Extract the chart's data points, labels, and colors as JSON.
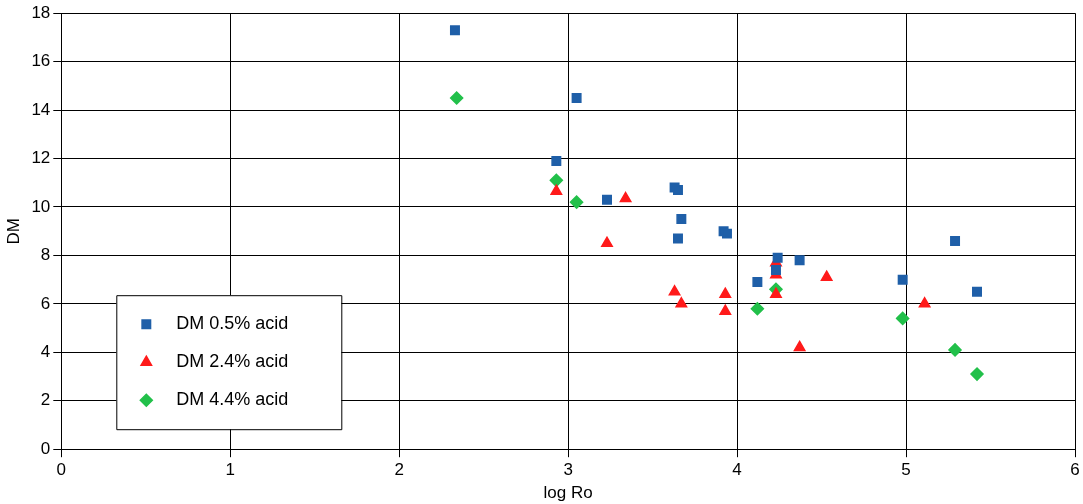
{
  "chart_data": {
    "type": "scatter",
    "xlabel": "log Ro",
    "ylabel": "DM",
    "xlim": [
      0,
      6
    ],
    "xticks": [
      0,
      1,
      2,
      3,
      4,
      5,
      6
    ],
    "ylim": [
      0,
      18
    ],
    "yticks": [
      0,
      2,
      4,
      6,
      8,
      10,
      12,
      14,
      16,
      18
    ],
    "grid": true,
    "legend": "bottom left",
    "series": [
      {
        "name": "DM 0.5% acid",
        "color": "#1f5fa8",
        "marker": "square",
        "x": [
          2.33,
          3.05,
          2.93,
          3.23,
          3.63,
          3.65,
          3.67,
          3.65,
          3.92,
          3.94,
          4.24,
          4.37,
          4.12,
          4.23,
          5.29,
          4.98,
          5.42
        ],
        "values": [
          17.3,
          14.5,
          11.9,
          10.3,
          10.8,
          10.7,
          9.5,
          8.7,
          9.0,
          8.9,
          7.9,
          7.8,
          6.9,
          7.4,
          8.6,
          7.0,
          6.5
        ]
      },
      {
        "name": "DM 2.4% acid",
        "color": "#ff1a1a",
        "marker": "triangle",
        "x": [
          2.93,
          3.34,
          3.23,
          3.63,
          3.67,
          3.93,
          3.93,
          4.23,
          4.23,
          4.23,
          4.53,
          4.37,
          5.11
        ],
        "values": [
          10.65,
          10.35,
          8.5,
          6.5,
          6.0,
          6.4,
          5.7,
          7.7,
          7.2,
          6.4,
          7.1,
          4.2,
          6.0
        ]
      },
      {
        "name": "DM 4.4% acid",
        "color": "#22c04a",
        "marker": "diamond",
        "x": [
          2.34,
          2.93,
          3.05,
          4.12,
          4.23,
          4.98,
          5.29,
          5.42
        ],
        "values": [
          14.5,
          11.1,
          10.2,
          5.8,
          6.6,
          5.4,
          4.1,
          3.1
        ]
      }
    ]
  }
}
